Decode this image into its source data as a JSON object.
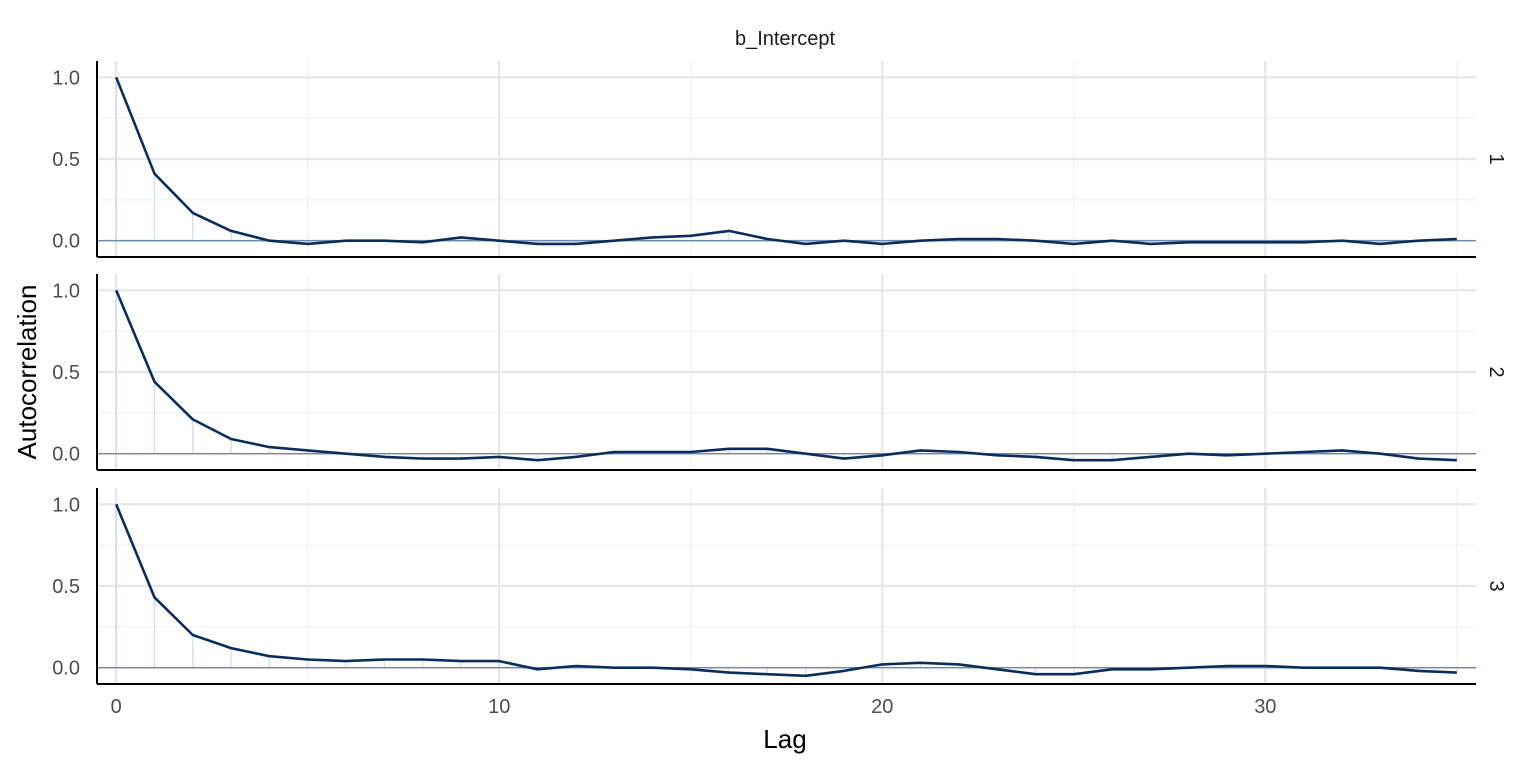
{
  "chart_data": {
    "type": "line",
    "title": "b_Intercept",
    "xlabel": "Lag",
    "ylabel": "Autocorrelation",
    "x_ticks": [
      0,
      10,
      20,
      30
    ],
    "y_ticks": [
      "1.0",
      "0.5",
      "0.0"
    ],
    "xlim": [
      -0.5,
      35.5
    ],
    "ylim": [
      -0.1,
      1.1
    ],
    "grid": true,
    "colors": {
      "line": "#0b2d5b",
      "zero_line": "#6a8caf",
      "bars": "#d1e0ec",
      "grid_major": "#e6e6e6",
      "grid_minor": "#f0f0f0"
    },
    "x": [
      0,
      1,
      2,
      3,
      4,
      5,
      6,
      7,
      8,
      9,
      10,
      11,
      12,
      13,
      14,
      15,
      16,
      17,
      18,
      19,
      20,
      21,
      22,
      23,
      24,
      25,
      26,
      27,
      28,
      29,
      30,
      31,
      32,
      33,
      34,
      35
    ],
    "series": [
      {
        "name": "1",
        "values": [
          1.0,
          0.41,
          0.17,
          0.06,
          0.0,
          -0.02,
          0.0,
          0.0,
          -0.01,
          0.02,
          0.0,
          -0.02,
          -0.02,
          0.0,
          0.02,
          0.03,
          0.06,
          0.01,
          -0.02,
          0.0,
          -0.02,
          0.0,
          0.01,
          0.01,
          0.0,
          -0.02,
          0.0,
          -0.02,
          -0.01,
          -0.01,
          -0.01,
          -0.01,
          0.0,
          -0.02,
          0.0,
          0.01
        ]
      },
      {
        "name": "2",
        "values": [
          1.0,
          0.44,
          0.21,
          0.09,
          0.04,
          0.02,
          0.0,
          -0.02,
          -0.03,
          -0.03,
          -0.02,
          -0.04,
          -0.02,
          0.01,
          0.01,
          0.01,
          0.03,
          0.03,
          0.0,
          -0.03,
          -0.01,
          0.02,
          0.01,
          -0.01,
          -0.02,
          -0.04,
          -0.04,
          -0.02,
          0.0,
          -0.01,
          0.0,
          0.01,
          0.02,
          0.0,
          -0.03,
          -0.04
        ]
      },
      {
        "name": "3",
        "values": [
          1.0,
          0.43,
          0.2,
          0.12,
          0.07,
          0.05,
          0.04,
          0.05,
          0.05,
          0.04,
          0.04,
          -0.01,
          0.01,
          0.0,
          0.0,
          -0.01,
          -0.03,
          -0.04,
          -0.05,
          -0.02,
          0.02,
          0.03,
          0.02,
          -0.01,
          -0.04,
          -0.04,
          -0.01,
          -0.01,
          0.0,
          0.01,
          0.01,
          0.0,
          0.0,
          0.0,
          -0.02,
          -0.03
        ]
      }
    ]
  }
}
